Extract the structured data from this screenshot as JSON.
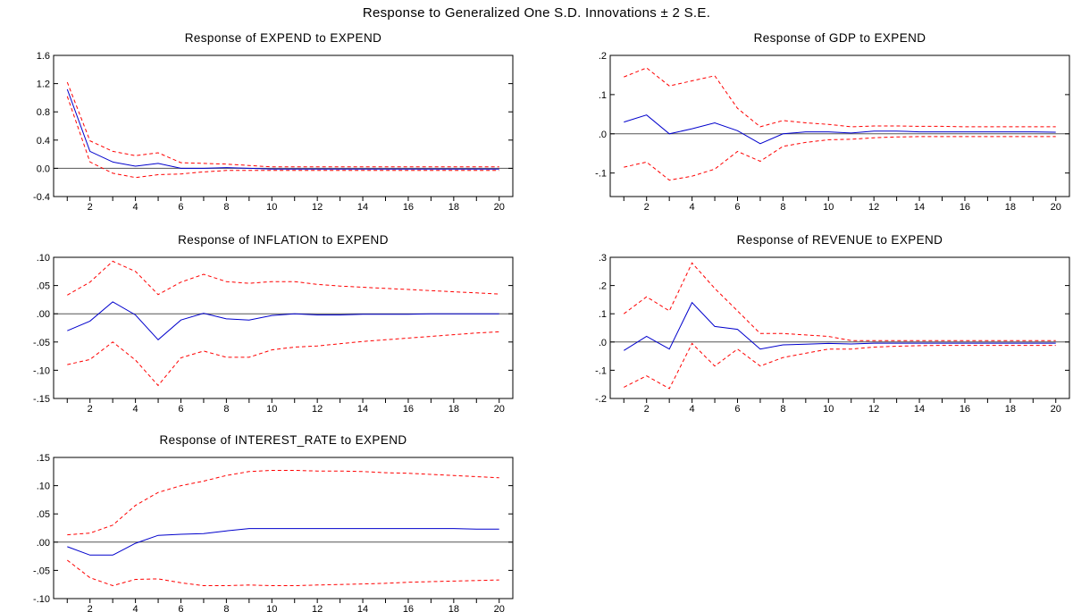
{
  "figure": {
    "title": "Response to Generalized One S.D. Innovations ± 2 S.E."
  },
  "chart_data": [
    {
      "type": "line",
      "title": "Response of EXPEND to EXPEND",
      "x": [
        1,
        2,
        3,
        4,
        5,
        6,
        7,
        8,
        9,
        10,
        11,
        12,
        13,
        14,
        15,
        16,
        17,
        18,
        19,
        20
      ],
      "xticks": [
        2,
        4,
        6,
        8,
        10,
        12,
        14,
        16,
        18,
        20
      ],
      "xtick_labels": [
        "2",
        "4",
        "6",
        "8",
        "10",
        "12",
        "14",
        "16",
        "18",
        "20"
      ],
      "ylim": [
        -0.4,
        1.6
      ],
      "yticks": [
        -0.4,
        0.0,
        0.4,
        0.8,
        1.2,
        1.6
      ],
      "ytick_labels": [
        "-0.4",
        "0.0",
        "0.4",
        "0.8",
        "1.2",
        "1.6"
      ],
      "zero_line": true,
      "series": [
        {
          "role": "response",
          "color": "#0000cc",
          "dash": false,
          "values": [
            1.12,
            0.24,
            0.09,
            0.03,
            0.07,
            0.0,
            0.0,
            0.01,
            0.0,
            -0.01,
            -0.01,
            -0.01,
            -0.01,
            -0.01,
            -0.01,
            -0.01,
            -0.01,
            -0.01,
            -0.01,
            -0.01
          ]
        },
        {
          "role": "upper",
          "color": "#ff0000",
          "dash": true,
          "values": [
            1.22,
            0.39,
            0.24,
            0.18,
            0.22,
            0.08,
            0.07,
            0.06,
            0.04,
            0.02,
            0.02,
            0.02,
            0.02,
            0.02,
            0.02,
            0.02,
            0.02,
            0.02,
            0.02,
            0.02
          ]
        },
        {
          "role": "lower",
          "color": "#ff0000",
          "dash": true,
          "values": [
            1.02,
            0.09,
            -0.07,
            -0.13,
            -0.09,
            -0.08,
            -0.05,
            -0.03,
            -0.03,
            -0.03,
            -0.03,
            -0.03,
            -0.03,
            -0.03,
            -0.03,
            -0.03,
            -0.03,
            -0.03,
            -0.03,
            -0.03
          ]
        }
      ]
    },
    {
      "type": "line",
      "title": "Response of GDP to EXPEND",
      "x": [
        1,
        2,
        3,
        4,
        5,
        6,
        7,
        8,
        9,
        10,
        11,
        12,
        13,
        14,
        15,
        16,
        17,
        18,
        19,
        20
      ],
      "xticks": [
        2,
        4,
        6,
        8,
        10,
        12,
        14,
        16,
        18,
        20
      ],
      "xtick_labels": [
        "2",
        "4",
        "6",
        "8",
        "10",
        "12",
        "14",
        "16",
        "18",
        "20"
      ],
      "ylim": [
        -0.16,
        0.2
      ],
      "yticks": [
        -0.1,
        0.0,
        0.1,
        0.2
      ],
      "ytick_labels": [
        "-.1",
        ".0",
        ".1",
        ".2"
      ],
      "zero_line": true,
      "series": [
        {
          "role": "response",
          "color": "#0000cc",
          "dash": false,
          "values": [
            0.03,
            0.048,
            0.0,
            0.013,
            0.028,
            0.008,
            -0.025,
            0.0,
            0.005,
            0.005,
            0.002,
            0.007,
            0.007,
            0.005,
            0.005,
            0.005,
            0.005,
            0.005,
            0.005,
            0.004
          ]
        },
        {
          "role": "upper",
          "color": "#ff0000",
          "dash": true,
          "values": [
            0.145,
            0.168,
            0.122,
            0.135,
            0.148,
            0.065,
            0.018,
            0.034,
            0.028,
            0.024,
            0.018,
            0.02,
            0.02,
            0.019,
            0.019,
            0.018,
            0.018,
            0.018,
            0.018,
            0.018
          ]
        },
        {
          "role": "lower",
          "color": "#ff0000",
          "dash": true,
          "values": [
            -0.085,
            -0.072,
            -0.118,
            -0.108,
            -0.09,
            -0.045,
            -0.07,
            -0.032,
            -0.022,
            -0.015,
            -0.014,
            -0.01,
            -0.008,
            -0.007,
            -0.007,
            -0.007,
            -0.007,
            -0.007,
            -0.007,
            -0.007
          ]
        }
      ]
    },
    {
      "type": "line",
      "title": "Response of INFLATION to EXPEND",
      "x": [
        1,
        2,
        3,
        4,
        5,
        6,
        7,
        8,
        9,
        10,
        11,
        12,
        13,
        14,
        15,
        16,
        17,
        18,
        19,
        20
      ],
      "xticks": [
        2,
        4,
        6,
        8,
        10,
        12,
        14,
        16,
        18,
        20
      ],
      "xtick_labels": [
        "2",
        "4",
        "6",
        "8",
        "10",
        "12",
        "14",
        "16",
        "18",
        "20"
      ],
      "ylim": [
        -0.15,
        0.1
      ],
      "yticks": [
        -0.15,
        -0.1,
        -0.05,
        0.0,
        0.05,
        0.1
      ],
      "ytick_labels": [
        "-.15",
        "-.10",
        "-.05",
        ".00",
        ".05",
        ".10"
      ],
      "zero_line": true,
      "series": [
        {
          "role": "response",
          "color": "#0000cc",
          "dash": false,
          "values": [
            -0.03,
            -0.013,
            0.021,
            -0.002,
            -0.046,
            -0.011,
            0.001,
            -0.009,
            -0.011,
            -0.003,
            0.0,
            -0.002,
            -0.002,
            -0.001,
            -0.001,
            -0.001,
            0.0,
            0.0,
            0.0,
            0.0
          ]
        },
        {
          "role": "upper",
          "color": "#ff0000",
          "dash": true,
          "values": [
            0.033,
            0.056,
            0.093,
            0.075,
            0.034,
            0.056,
            0.07,
            0.057,
            0.054,
            0.057,
            0.057,
            0.052,
            0.049,
            0.047,
            0.045,
            0.043,
            0.041,
            0.039,
            0.037,
            0.035
          ]
        },
        {
          "role": "lower",
          "color": "#ff0000",
          "dash": true,
          "values": [
            -0.09,
            -0.081,
            -0.05,
            -0.082,
            -0.127,
            -0.078,
            -0.066,
            -0.077,
            -0.077,
            -0.064,
            -0.059,
            -0.057,
            -0.053,
            -0.049,
            -0.046,
            -0.043,
            -0.04,
            -0.037,
            -0.034,
            -0.032
          ]
        }
      ]
    },
    {
      "type": "line",
      "title": "Response of REVENUE to EXPEND",
      "x": [
        1,
        2,
        3,
        4,
        5,
        6,
        7,
        8,
        9,
        10,
        11,
        12,
        13,
        14,
        15,
        16,
        17,
        18,
        19,
        20
      ],
      "xticks": [
        2,
        4,
        6,
        8,
        10,
        12,
        14,
        16,
        18,
        20
      ],
      "xtick_labels": [
        "2",
        "4",
        "6",
        "8",
        "10",
        "12",
        "14",
        "16",
        "18",
        "20"
      ],
      "ylim": [
        -0.2,
        0.3
      ],
      "yticks": [
        -0.2,
        -0.1,
        0.0,
        0.1,
        0.2,
        0.3
      ],
      "ytick_labels": [
        "-.2",
        "-.1",
        ".0",
        ".1",
        ".2",
        ".3"
      ],
      "zero_line": true,
      "series": [
        {
          "role": "response",
          "color": "#0000cc",
          "dash": false,
          "values": [
            -0.03,
            0.02,
            -0.025,
            0.14,
            0.055,
            0.045,
            -0.025,
            -0.01,
            -0.008,
            -0.005,
            -0.007,
            -0.004,
            -0.004,
            -0.004,
            -0.004,
            -0.004,
            -0.004,
            -0.004,
            -0.004,
            -0.004
          ]
        },
        {
          "role": "upper",
          "color": "#ff0000",
          "dash": true,
          "values": [
            0.1,
            0.16,
            0.11,
            0.28,
            0.19,
            0.11,
            0.03,
            0.03,
            0.025,
            0.02,
            0.005,
            0.005,
            0.005,
            0.005,
            0.005,
            0.005,
            0.005,
            0.005,
            0.005,
            0.005
          ]
        },
        {
          "role": "lower",
          "color": "#ff0000",
          "dash": true,
          "values": [
            -0.16,
            -0.12,
            -0.165,
            -0.005,
            -0.085,
            -0.025,
            -0.085,
            -0.055,
            -0.04,
            -0.025,
            -0.025,
            -0.018,
            -0.015,
            -0.013,
            -0.012,
            -0.012,
            -0.012,
            -0.012,
            -0.012,
            -0.012
          ]
        }
      ]
    },
    {
      "type": "line",
      "title": "Response of INTEREST_RATE to EXPEND",
      "x": [
        1,
        2,
        3,
        4,
        5,
        6,
        7,
        8,
        9,
        10,
        11,
        12,
        13,
        14,
        15,
        16,
        17,
        18,
        19,
        20
      ],
      "xticks": [
        2,
        4,
        6,
        8,
        10,
        12,
        14,
        16,
        18,
        20
      ],
      "xtick_labels": [
        "2",
        "4",
        "6",
        "8",
        "10",
        "12",
        "14",
        "16",
        "18",
        "20"
      ],
      "ylim": [
        -0.1,
        0.15
      ],
      "yticks": [
        -0.1,
        -0.05,
        0.0,
        0.05,
        0.1,
        0.15
      ],
      "ytick_labels": [
        "-.10",
        "-.05",
        ".00",
        ".05",
        ".10",
        ".15"
      ],
      "zero_line": true,
      "series": [
        {
          "role": "response",
          "color": "#0000cc",
          "dash": false,
          "values": [
            -0.008,
            -0.023,
            -0.023,
            -0.002,
            0.012,
            0.014,
            0.015,
            0.02,
            0.024,
            0.024,
            0.024,
            0.024,
            0.024,
            0.024,
            0.024,
            0.024,
            0.024,
            0.024,
            0.023,
            0.023
          ]
        },
        {
          "role": "upper",
          "color": "#ff0000",
          "dash": true,
          "values": [
            0.013,
            0.016,
            0.03,
            0.065,
            0.088,
            0.1,
            0.108,
            0.118,
            0.125,
            0.127,
            0.127,
            0.126,
            0.126,
            0.125,
            0.123,
            0.122,
            0.12,
            0.118,
            0.116,
            0.114
          ]
        },
        {
          "role": "lower",
          "color": "#ff0000",
          "dash": true,
          "values": [
            -0.032,
            -0.063,
            -0.077,
            -0.066,
            -0.065,
            -0.072,
            -0.077,
            -0.077,
            -0.076,
            -0.077,
            -0.077,
            -0.076,
            -0.075,
            -0.074,
            -0.073,
            -0.071,
            -0.07,
            -0.069,
            -0.068,
            -0.067
          ]
        }
      ]
    }
  ]
}
